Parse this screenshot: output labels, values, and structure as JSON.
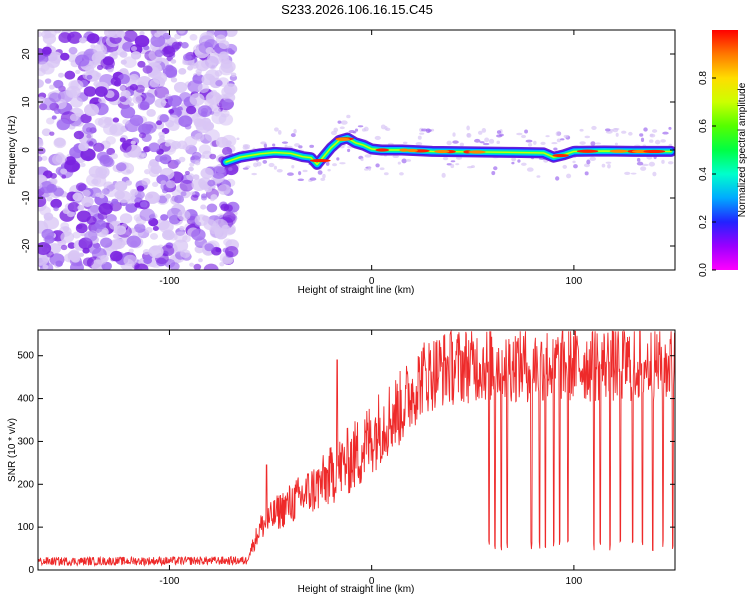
{
  "colors": {
    "snr_line": "#ee2a2a",
    "blob_light": "#d9c6f5",
    "blob_dark": "#7a22e0",
    "frame": "#000000"
  },
  "chart_data": [
    {
      "type": "heatmap",
      "title": "S233.2026.106.16.15.C45",
      "xlabel": "Height of straight line (km)",
      "ylabel": "Frequency (Hz)",
      "xlim": [
        -165,
        150
      ],
      "ylim": [
        -25,
        25
      ],
      "x_ticks": [
        -100,
        0,
        100
      ],
      "y_ticks": [
        -20,
        -10,
        0,
        10,
        20
      ],
      "noise_region_x": [
        -165,
        -70
      ],
      "ridge": {
        "x": [
          -72,
          -65,
          -55,
          -48,
          -40,
          -34,
          -30,
          -27,
          -24,
          -20,
          -16,
          -12,
          -8,
          -4,
          0,
          5,
          15,
          30,
          50,
          70,
          85,
          90,
          95,
          100,
          115,
          130,
          148
        ],
        "y": [
          -2.5,
          -1.5,
          -0.8,
          -0.5,
          -0.7,
          -1.4,
          -1.6,
          -3,
          -1.5,
          0.5,
          2,
          2.5,
          1.5,
          1,
          0.2,
          0,
          0,
          -0.3,
          -0.4,
          -0.5,
          -0.6,
          -1.5,
          -1,
          -0.3,
          -0.2,
          -0.3,
          -0.3
        ]
      },
      "colorbar": {
        "label": "Normalized spectral amplitude",
        "ticks": [
          0.0,
          0.2,
          0.4,
          0.6,
          0.8
        ],
        "tick_labels": [
          "0.0",
          "0.2",
          "0.4",
          "0.6",
          "0.8"
        ],
        "range": [
          0,
          1
        ]
      }
    },
    {
      "type": "line",
      "xlabel": "Height of straight line (km)",
      "ylabel": "SNR (10 * v/v)",
      "xlim": [
        -165,
        150
      ],
      "ylim": [
        0,
        560
      ],
      "x_ticks": [
        -100,
        0,
        100
      ],
      "y_ticks": [
        0,
        100,
        200,
        300,
        400,
        500
      ],
      "series": [
        {
          "name": "SNR",
          "trend": {
            "x": [
              -165,
              -62,
              -55,
              -45,
              -35,
              -25,
              -15,
              -5,
              5,
              15,
              25,
              35,
              50,
              150
            ],
            "y": [
              20,
              22,
              100,
              140,
              170,
              200,
              240,
              280,
              340,
              380,
              450,
              470,
              480,
              480
            ]
          },
          "spikes": [
            {
              "x": -52,
              "y": 245
            },
            {
              "x": -17,
              "y": 490
            }
          ],
          "dropouts_x": [
            58,
            61,
            64,
            67,
            79,
            83,
            86,
            90,
            93,
            97,
            110,
            113,
            118,
            123,
            129,
            134,
            139,
            144,
            149
          ]
        }
      ]
    }
  ]
}
